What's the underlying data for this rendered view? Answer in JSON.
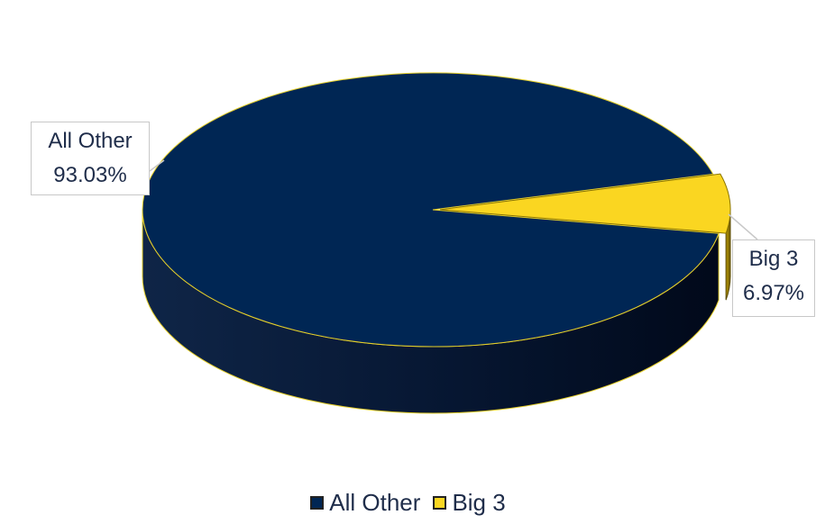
{
  "chart_data": {
    "type": "pie",
    "title": "",
    "categories": [
      "All Other",
      "Big 3"
    ],
    "values": [
      93.03,
      6.97
    ],
    "data_labels": [
      {
        "category": "All Other",
        "value_label": "93.03%"
      },
      {
        "category": "Big 3",
        "value_label": "6.97%"
      }
    ],
    "colors": [
      "#002654",
      "#FAD621"
    ],
    "style": "3d-exploded",
    "legend_position": "bottom"
  },
  "legend": {
    "items": [
      {
        "label": "All Other",
        "color": "#002654"
      },
      {
        "label": "Big 3",
        "color": "#FAD621"
      }
    ]
  },
  "labels": {
    "all_other": {
      "name": "All Other",
      "value": "93.03%"
    },
    "big3": {
      "name": "Big 3",
      "value": "6.97%"
    }
  }
}
